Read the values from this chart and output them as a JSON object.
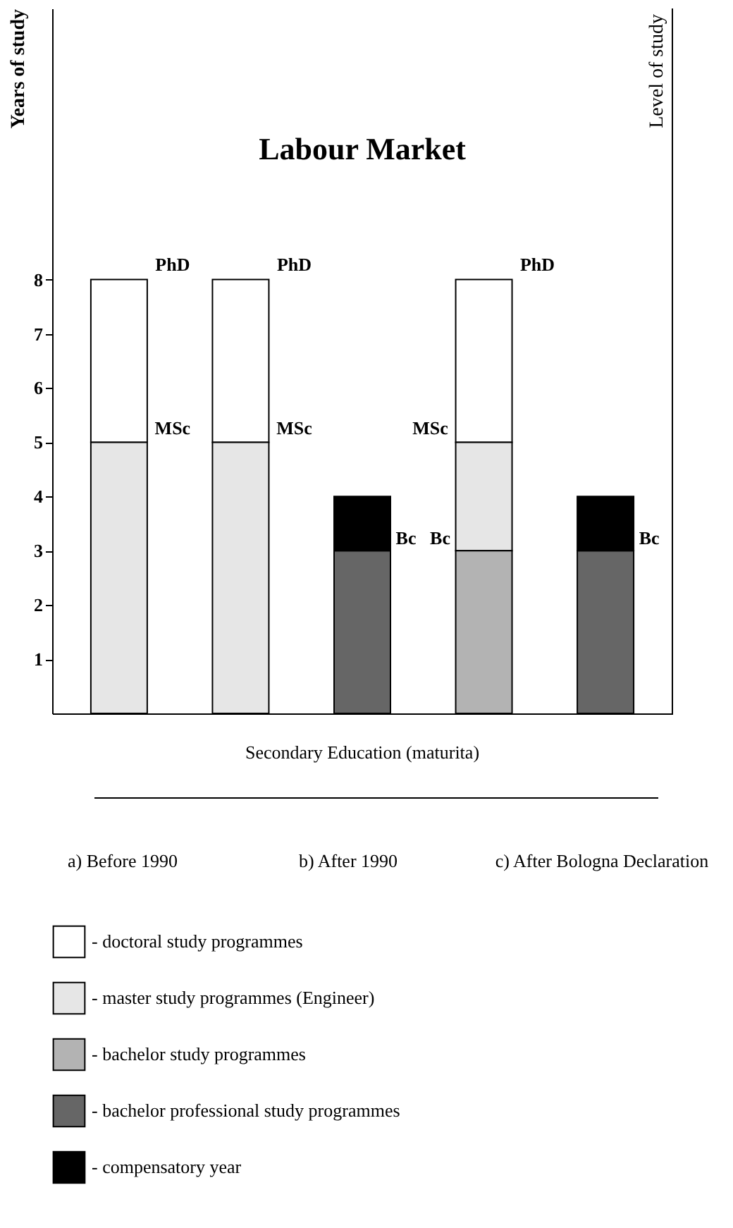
{
  "chart_data": {
    "type": "bar",
    "title": "Labour Market",
    "ylabel": "Years of study",
    "y2label": "Level of study",
    "categories": [
      null,
      null,
      null,
      null,
      null
    ],
    "series": [
      {
        "name": "- doctoral study programmes",
        "color": "#ffffff",
        "values": [
          3,
          3,
          null,
          3,
          null
        ],
        "base": [
          5,
          5,
          null,
          5,
          null
        ]
      },
      {
        "name": "- master study programmes (Engineer)",
        "color": "#e6e6e6",
        "values": [
          5,
          5,
          null,
          2,
          null
        ],
        "base": [
          0,
          0,
          null,
          3,
          null
        ]
      },
      {
        "name": "- bachelor study programmes",
        "color": "#b3b3b3",
        "values": [
          null,
          null,
          null,
          3,
          null
        ],
        "base": [
          null,
          null,
          null,
          0,
          null
        ]
      },
      {
        "name": "- bachelor professional study programmes",
        "color": "#666666",
        "values": [
          null,
          null,
          3,
          null,
          3
        ],
        "base": [
          null,
          null,
          0,
          null,
          0
        ]
      },
      {
        "name": "- compensatory year",
        "color": "#000000",
        "values": [
          null,
          null,
          1,
          null,
          1
        ],
        "base": [
          null,
          null,
          3,
          null,
          3
        ]
      }
    ],
    "ylim": [
      0,
      13
    ],
    "yticks": [
      1,
      2,
      3,
      4,
      5,
      6,
      7,
      8
    ],
    "grid": false,
    "legend": "bottom",
    "annotations": [
      "PhD",
      "PhD",
      "PhD",
      "MSc",
      "MSc",
      "MSc",
      "Bc",
      "Bc",
      "Bc",
      "Secondary Education (maturita)",
      "a) Before 1990",
      "b) After 1990",
      "c) After Bologna Declaration"
    ]
  }
}
